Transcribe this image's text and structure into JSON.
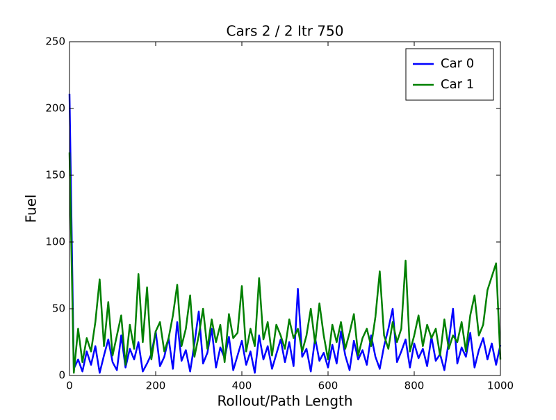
{
  "chart_data": {
    "type": "line",
    "title": "Cars 2 / 2 Itr 750",
    "x_label": "Rollout/Path Length",
    "y_label": "Fuel",
    "x": [
      0,
      10,
      20,
      30,
      40,
      50,
      60,
      70,
      80,
      90,
      100,
      110,
      120,
      130,
      140,
      150,
      160,
      170,
      180,
      190,
      200,
      210,
      220,
      230,
      240,
      250,
      260,
      270,
      280,
      290,
      300,
      310,
      320,
      330,
      340,
      350,
      360,
      370,
      380,
      390,
      400,
      410,
      420,
      430,
      440,
      450,
      460,
      470,
      480,
      490,
      500,
      510,
      520,
      530,
      540,
      550,
      560,
      570,
      580,
      590,
      600,
      610,
      620,
      630,
      640,
      650,
      660,
      670,
      680,
      690,
      700,
      710,
      720,
      730,
      740,
      750,
      760,
      770,
      780,
      790,
      800,
      810,
      820,
      830,
      840,
      850,
      860,
      870,
      880,
      890,
      900,
      910,
      920,
      930,
      940,
      950,
      960,
      970,
      980,
      990,
      1000
    ],
    "series": [
      {
        "name": "Car 0",
        "color": "#0000ff",
        "values": [
          211,
          5,
          12,
          3,
          18,
          8,
          22,
          2,
          15,
          27,
          10,
          4,
          30,
          6,
          20,
          12,
          25,
          3,
          9,
          16,
          33,
          7,
          14,
          28,
          5,
          40,
          11,
          19,
          3,
          24,
          48,
          9,
          17,
          35,
          6,
          21,
          13,
          29,
          4,
          15,
          26,
          8,
          18,
          2,
          30,
          12,
          22,
          5,
          16,
          27,
          10,
          25,
          7,
          65,
          14,
          20,
          3,
          28,
          11,
          17,
          6,
          23,
          9,
          33,
          15,
          4,
          26,
          12,
          19,
          8,
          30,
          14,
          5,
          22,
          35,
          50,
          10,
          18,
          27,
          6,
          24,
          13,
          20,
          7,
          29,
          11,
          16,
          4,
          25,
          50,
          9,
          21,
          14,
          32,
          6,
          19,
          28,
          12,
          24,
          8,
          23
        ]
      },
      {
        "name": "Car 1",
        "color": "#008000",
        "values": [
          167,
          2,
          35,
          10,
          28,
          18,
          40,
          72,
          22,
          55,
          15,
          30,
          45,
          8,
          38,
          20,
          76,
          25,
          66,
          12,
          33,
          40,
          18,
          28,
          45,
          68,
          22,
          35,
          60,
          14,
          30,
          50,
          20,
          42,
          25,
          38,
          10,
          46,
          28,
          32,
          67,
          18,
          35,
          22,
          73,
          27,
          40,
          15,
          38,
          30,
          20,
          42,
          28,
          35,
          18,
          30,
          50,
          24,
          54,
          30,
          12,
          38,
          25,
          40,
          20,
          32,
          46,
          15,
          28,
          35,
          22,
          44,
          78,
          30,
          20,
          40,
          25,
          35,
          86,
          18,
          30,
          45,
          22,
          38,
          28,
          35,
          15,
          42,
          20,
          30,
          25,
          40,
          18,
          45,
          60,
          30,
          38,
          64,
          74,
          84,
          12
        ]
      }
    ],
    "xlim": [
      0,
      1000
    ],
    "xticks": [
      0,
      200,
      400,
      600,
      800,
      1000
    ],
    "ylim": [
      0,
      250
    ],
    "yticks": [
      0,
      50,
      100,
      150,
      200,
      250
    ],
    "grid": false,
    "legend": "upper right"
  }
}
